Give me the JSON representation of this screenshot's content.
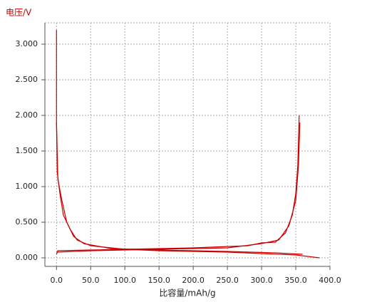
{
  "chart_data": {
    "type": "line",
    "ylabel": "电压/V",
    "xlabel": "比容量/mAh/g",
    "xlim": [
      -17,
      400
    ],
    "ylim": [
      -0.12,
      3.3
    ],
    "xticks": [
      {
        "value": 0,
        "label": "0.0"
      },
      {
        "value": 50,
        "label": "50.0"
      },
      {
        "value": 100,
        "label": "100.0"
      },
      {
        "value": 150,
        "label": "150.0"
      },
      {
        "value": 200,
        "label": "200.0"
      },
      {
        "value": 250,
        "label": "250.0"
      },
      {
        "value": 300,
        "label": "300.0"
      },
      {
        "value": 350,
        "label": "350.0"
      },
      {
        "value": 400,
        "label": "400.0"
      }
    ],
    "yticks": [
      {
        "value": 0,
        "label": "0.000"
      },
      {
        "value": 0.5,
        "label": "0.500"
      },
      {
        "value": 1,
        "label": "1.000"
      },
      {
        "value": 1.5,
        "label": "1.500"
      },
      {
        "value": 2,
        "label": "2.000"
      },
      {
        "value": 2.5,
        "label": "2.500"
      },
      {
        "value": 3,
        "label": "3.000"
      }
    ],
    "grid": true,
    "series": [
      {
        "color": "#cc0000",
        "x": [
          0,
          0,
          0,
          1,
          5,
          10,
          20,
          30,
          50,
          100,
          150,
          200,
          250,
          300,
          350,
          385
        ],
        "values": [
          3.2,
          2.4,
          1.9,
          1.2,
          0.9,
          0.6,
          0.4,
          0.25,
          0.17,
          0.12,
          0.1,
          0.09,
          0.08,
          0.06,
          0.04,
          0.0
        ]
      },
      {
        "color": "#cc0000",
        "x": [
          0,
          2,
          50,
          100,
          200,
          280,
          300,
          320,
          335,
          345,
          350,
          353,
          355
        ],
        "values": [
          0.05,
          0.1,
          0.11,
          0.12,
          0.14,
          0.17,
          0.21,
          0.22,
          0.35,
          0.6,
          0.9,
          1.3,
          2.0
        ]
      },
      {
        "color": "#cc0000",
        "x": [
          0,
          2,
          8,
          15,
          25,
          40,
          80,
          150,
          250,
          320,
          360
        ],
        "values": [
          1.9,
          1.1,
          0.8,
          0.5,
          0.3,
          0.2,
          0.13,
          0.11,
          0.09,
          0.07,
          0.05
        ]
      },
      {
        "color": "#cc0000",
        "x": [
          0,
          50,
          150,
          250,
          300,
          325,
          340,
          350,
          354,
          356
        ],
        "values": [
          0.08,
          0.1,
          0.12,
          0.14,
          0.2,
          0.25,
          0.45,
          0.8,
          1.3,
          1.9
        ]
      }
    ]
  }
}
